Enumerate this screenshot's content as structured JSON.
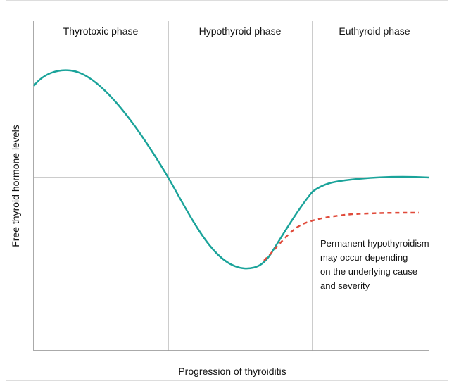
{
  "phases": [
    "Thyrotoxic phase",
    "Hypothyroid phase",
    "Euthyroid phase"
  ],
  "y_axis_label": "Free thyroid hormone levels",
  "x_axis_label": "Progression of thyroiditis",
  "annotation": [
    "Permanent hypothyroidism",
    "may occur depending",
    "on the underlying cause",
    "and severity"
  ]
}
